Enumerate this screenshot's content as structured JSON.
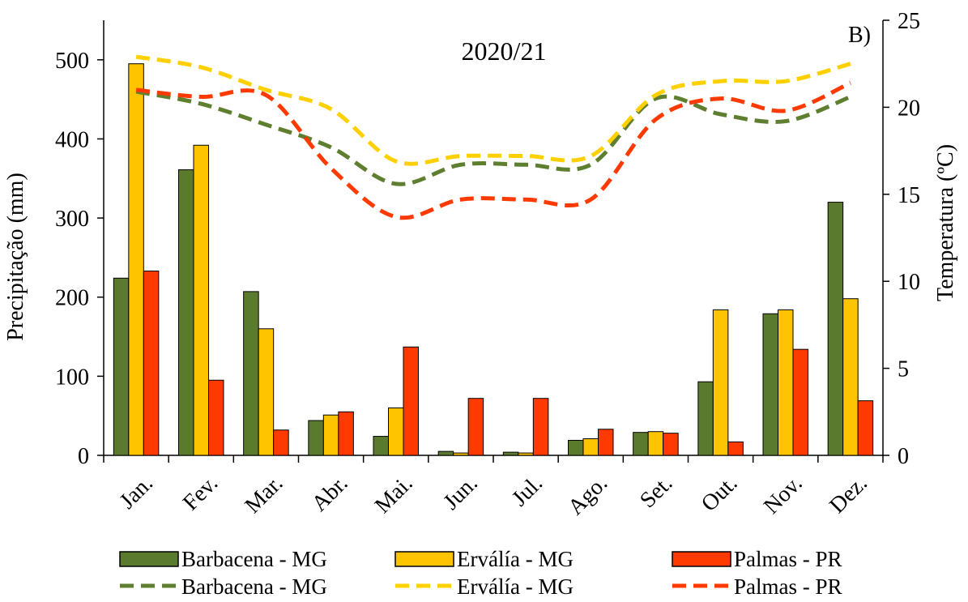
{
  "chart_data": {
    "type": "bar",
    "title": "2020/21",
    "panel_label": "B)",
    "categories": [
      "Jan.",
      "Fev.",
      "Mar.",
      "Abr.",
      "Mai.",
      "Jun.",
      "Jul.",
      "Ago.",
      "Set.",
      "Out.",
      "Nov.",
      "Dez."
    ],
    "ylabel": "Precipitação (mm)",
    "y2label": "Temperatura (ºC)",
    "ylim": [
      0,
      550
    ],
    "y2lim": [
      0,
      25
    ],
    "yticks": [
      0,
      100,
      200,
      300,
      400,
      500
    ],
    "y2ticks": [
      0,
      5,
      10,
      15,
      20,
      25
    ],
    "grid": false,
    "legend_position": "bottom",
    "bar_series": [
      {
        "name": "Barbacena - MG",
        "color": "#5a7a2e",
        "values": [
          224,
          361,
          207,
          44,
          24,
          5,
          4,
          19,
          29,
          93,
          179,
          320
        ]
      },
      {
        "name": "Erválía - MG",
        "color": "#ffc400",
        "values": [
          495,
          392,
          160,
          51,
          60,
          3,
          3,
          21,
          30,
          184,
          184,
          198
        ]
      },
      {
        "name": "Palmas - PR",
        "color": "#ff3a00",
        "values": [
          233,
          95,
          32,
          55,
          137,
          72,
          72,
          33,
          28,
          17,
          134,
          69
        ]
      }
    ],
    "line_series": [
      {
        "name": "Barbacena - MG",
        "color": "#5f7f30",
        "axis": "right",
        "values": [
          20.9,
          20.2,
          19.0,
          17.7,
          15.6,
          16.7,
          16.7,
          16.7,
          20.5,
          19.6,
          19.2,
          20.6
        ]
      },
      {
        "name": "Erválía - MG",
        "color": "#ffd000",
        "axis": "right",
        "values": [
          22.9,
          22.3,
          21.0,
          19.9,
          16.9,
          17.2,
          17.2,
          17.2,
          20.7,
          21.5,
          21.5,
          22.5
        ]
      },
      {
        "name": "Palmas - PR",
        "color": "#ff3a00",
        "axis": "right",
        "values": [
          21.0,
          20.6,
          20.7,
          16.5,
          13.7,
          14.7,
          14.7,
          14.7,
          19.3,
          20.5,
          19.8,
          21.4
        ]
      }
    ]
  }
}
